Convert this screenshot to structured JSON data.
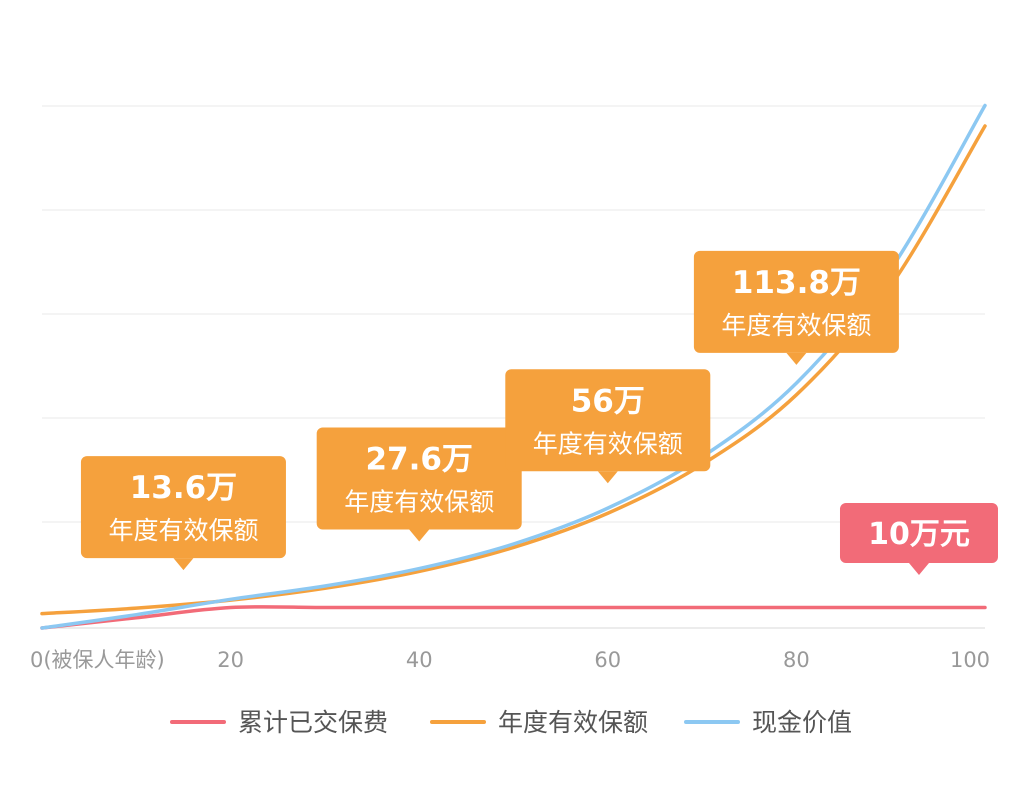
{
  "chart_data": {
    "type": "line",
    "xlabel": "",
    "ylabel": "",
    "x_tick_labels": [
      "0(被保人年龄)",
      "20",
      "40",
      "60",
      "80",
      "100"
    ],
    "xlim": [
      0,
      100
    ],
    "grid": true,
    "legend_position": "bottom-center",
    "series": [
      {
        "name": "累计已交保费",
        "color": "#f26b78",
        "x": [
          0,
          10,
          20,
          30,
          40,
          50,
          60,
          70,
          80,
          90,
          100
        ],
        "y": [
          0,
          5,
          10,
          10,
          10,
          10,
          10,
          10,
          10,
          10,
          10
        ]
      },
      {
        "name": "年度有效保额",
        "color": "#f5a13d",
        "x": [
          0,
          10,
          20,
          30,
          40,
          50,
          60,
          70,
          80,
          90,
          100
        ],
        "y": [
          7,
          9.7,
          13.6,
          19.4,
          27.6,
          39.3,
          56,
          79.8,
          113.8,
          167,
          245
        ]
      },
      {
        "name": "现金价值",
        "color": "#8cc8f2",
        "x": [
          0,
          10,
          20,
          30,
          40,
          50,
          60,
          70,
          80,
          90,
          100
        ],
        "y": [
          0,
          6.5,
          14,
          20.5,
          29,
          41,
          58.5,
          83.5,
          119.5,
          175,
          255
        ]
      }
    ],
    "annotations": [
      {
        "x": 15,
        "y": 13.6,
        "value": "13.6万",
        "label": "年度有效保额",
        "color": "#f5a13d"
      },
      {
        "x": 40,
        "y": 27.6,
        "value": "27.6万",
        "label": "年度有效保额",
        "color": "#f5a13d"
      },
      {
        "x": 60,
        "y": 56,
        "value": "56万",
        "label": "年度有效保额",
        "color": "#f5a13d"
      },
      {
        "x": 80,
        "y": 113.8,
        "value": "113.8万",
        "label": "年度有效保额",
        "color": "#f5a13d"
      },
      {
        "x": 93,
        "y": 10,
        "value": "10万元",
        "label": "",
        "color": "#f26b78"
      }
    ]
  }
}
